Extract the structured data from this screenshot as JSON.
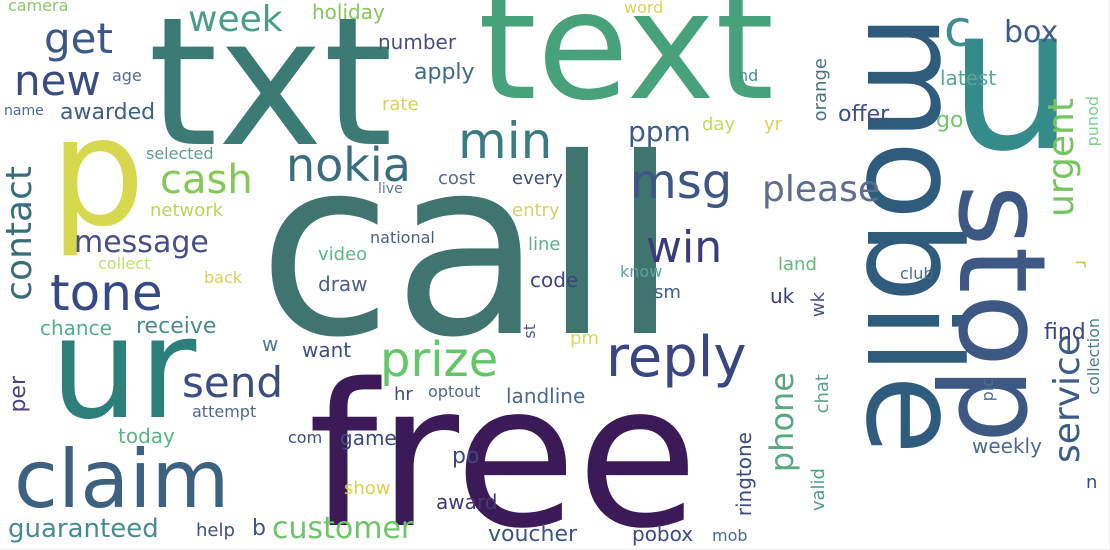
{
  "words": [
    {
      "text": "call",
      "color": "#40756f"
    },
    {
      "text": "free",
      "color": "#3b1a57"
    },
    {
      "text": "txt",
      "color": "#3b7b74"
    },
    {
      "text": "text",
      "color": "#47a17a"
    },
    {
      "text": "ur",
      "color": "#2e7e7a"
    },
    {
      "text": "mobile",
      "color": "#2f5b7d"
    },
    {
      "text": "stop",
      "color": "#3c5883"
    },
    {
      "text": "u",
      "color": "#358a8a"
    },
    {
      "text": "p",
      "color": "#d6d84e"
    },
    {
      "text": "claim",
      "color": "#3c627f"
    },
    {
      "text": "reply",
      "color": "#3a4682"
    },
    {
      "text": "prize",
      "color": "#63c668"
    },
    {
      "text": "nokia",
      "color": "#3a6e7d"
    },
    {
      "text": "min",
      "color": "#3a7d80"
    },
    {
      "text": "msg",
      "color": "#3e5585"
    },
    {
      "text": "win",
      "color": "#3a3c79"
    },
    {
      "text": "cash",
      "color": "#86c858"
    },
    {
      "text": "tone",
      "color": "#364a86"
    },
    {
      "text": "contact",
      "color": "#386e79"
    },
    {
      "text": "send",
      "color": "#3c4e80"
    },
    {
      "text": "new",
      "color": "#3a4b80"
    },
    {
      "text": "get",
      "color": "#3a5785"
    },
    {
      "text": "week",
      "color": "#4a9d88"
    },
    {
      "text": "c",
      "color": "#3e8e8a"
    },
    {
      "text": "box",
      "color": "#3f5e87"
    },
    {
      "text": "urgent",
      "color": "#75c45e"
    },
    {
      "text": "please",
      "color": "#5f6e8c"
    },
    {
      "text": "service",
      "color": "#3e5d86"
    },
    {
      "text": "phone",
      "color": "#5aa784"
    },
    {
      "text": "customer",
      "color": "#6fc46a"
    },
    {
      "text": "message",
      "color": "#4a4e84"
    },
    {
      "text": "guaranteed",
      "color": "#4a8a92"
    },
    {
      "text": "ppm",
      "color": "#3d5e86"
    },
    {
      "text": "per",
      "color": "#4f3f7b"
    },
    {
      "text": "chance",
      "color": "#52b089"
    },
    {
      "text": "receive",
      "color": "#4b8a8c"
    },
    {
      "text": "awarded",
      "color": "#3d5f80"
    },
    {
      "text": "apply",
      "color": "#3e6a82"
    },
    {
      "text": "number",
      "color": "#4c4f7e"
    },
    {
      "text": "holiday",
      "color": "#88c35e"
    },
    {
      "text": "camera",
      "color": "#8bc86a"
    },
    {
      "text": "word",
      "color": "#d9d35a"
    },
    {
      "text": "orange",
      "color": "#4a7485"
    },
    {
      "text": "nd",
      "color": "#4d8a8d"
    },
    {
      "text": "latest",
      "color": "#55a899"
    },
    {
      "text": "age",
      "color": "#5a6e8c"
    },
    {
      "text": "rate",
      "color": "#d5d35b"
    },
    {
      "text": "name",
      "color": "#4d6a8e"
    },
    {
      "text": "selected",
      "color": "#5c9e90"
    },
    {
      "text": "network",
      "color": "#c1d351"
    },
    {
      "text": "collect",
      "color": "#bfe26a"
    },
    {
      "text": "back",
      "color": "#d6d45c"
    },
    {
      "text": "day",
      "color": "#c3d95e"
    },
    {
      "text": "yr",
      "color": "#d7d35a"
    },
    {
      "text": "offer",
      "color": "#3f4f81"
    },
    {
      "text": "go",
      "color": "#77c36d"
    },
    {
      "text": "pound",
      "color": "#7fcf8d"
    },
    {
      "text": "cost",
      "color": "#5a6a8c"
    },
    {
      "text": "every",
      "color": "#3a4f81"
    },
    {
      "text": "live",
      "color": "#587a97"
    },
    {
      "text": "entry",
      "color": "#d5d45f"
    },
    {
      "text": "line",
      "color": "#5fb08b"
    },
    {
      "text": "national",
      "color": "#4a5f86"
    },
    {
      "text": "video",
      "color": "#5db78a"
    },
    {
      "text": "draw",
      "color": "#4a5f86"
    },
    {
      "text": "code",
      "color": "#3d4680"
    },
    {
      "text": "know",
      "color": "#5fa2a0"
    },
    {
      "text": "sm",
      "color": "#3f5e87"
    },
    {
      "text": "land",
      "color": "#68b87e"
    },
    {
      "text": "uk",
      "color": "#3a3f7a"
    },
    {
      "text": "wk",
      "color": "#4a4f84"
    },
    {
      "text": "r",
      "color": "#c8c44e"
    },
    {
      "text": "club",
      "color": "#4c6b88"
    },
    {
      "text": "find",
      "color": "#3d4680"
    },
    {
      "text": "w",
      "color": "#4d7a86"
    },
    {
      "text": "want",
      "color": "#3f4f84"
    },
    {
      "text": "st",
      "color": "#4c5786"
    },
    {
      "text": "pm",
      "color": "#d9da5e"
    },
    {
      "text": "hr",
      "color": "#3f4a80"
    },
    {
      "text": "optout",
      "color": "#4d6a8e"
    },
    {
      "text": "landline",
      "color": "#4b6a8c"
    },
    {
      "text": "chat",
      "color": "#5d9e8e"
    },
    {
      "text": "valid",
      "color": "#4c9e8a"
    },
    {
      "text": "ringtone",
      "color": "#3d4a80"
    },
    {
      "text": "pic",
      "color": "#4a6f8e"
    },
    {
      "text": "n",
      "color": "#3d4a80"
    },
    {
      "text": "collection",
      "color": "#4a7f8a"
    },
    {
      "text": "attempt",
      "color": "#4d6a8e"
    },
    {
      "text": "today",
      "color": "#5ab584"
    },
    {
      "text": "com",
      "color": "#3f4f84"
    },
    {
      "text": "game",
      "color": "#3d4a80"
    },
    {
      "text": "po",
      "color": "#3d4680"
    },
    {
      "text": "show",
      "color": "#d7d34f"
    },
    {
      "text": "award",
      "color": "#46377a"
    },
    {
      "text": "weekly",
      "color": "#4c6b88"
    },
    {
      "text": "help",
      "color": "#3f4f84"
    },
    {
      "text": "b",
      "color": "#4a4f84"
    },
    {
      "text": "voucher",
      "color": "#3d5585"
    },
    {
      "text": "pobox",
      "color": "#3d4a80"
    },
    {
      "text": "mob",
      "color": "#4d6a8e"
    }
  ]
}
